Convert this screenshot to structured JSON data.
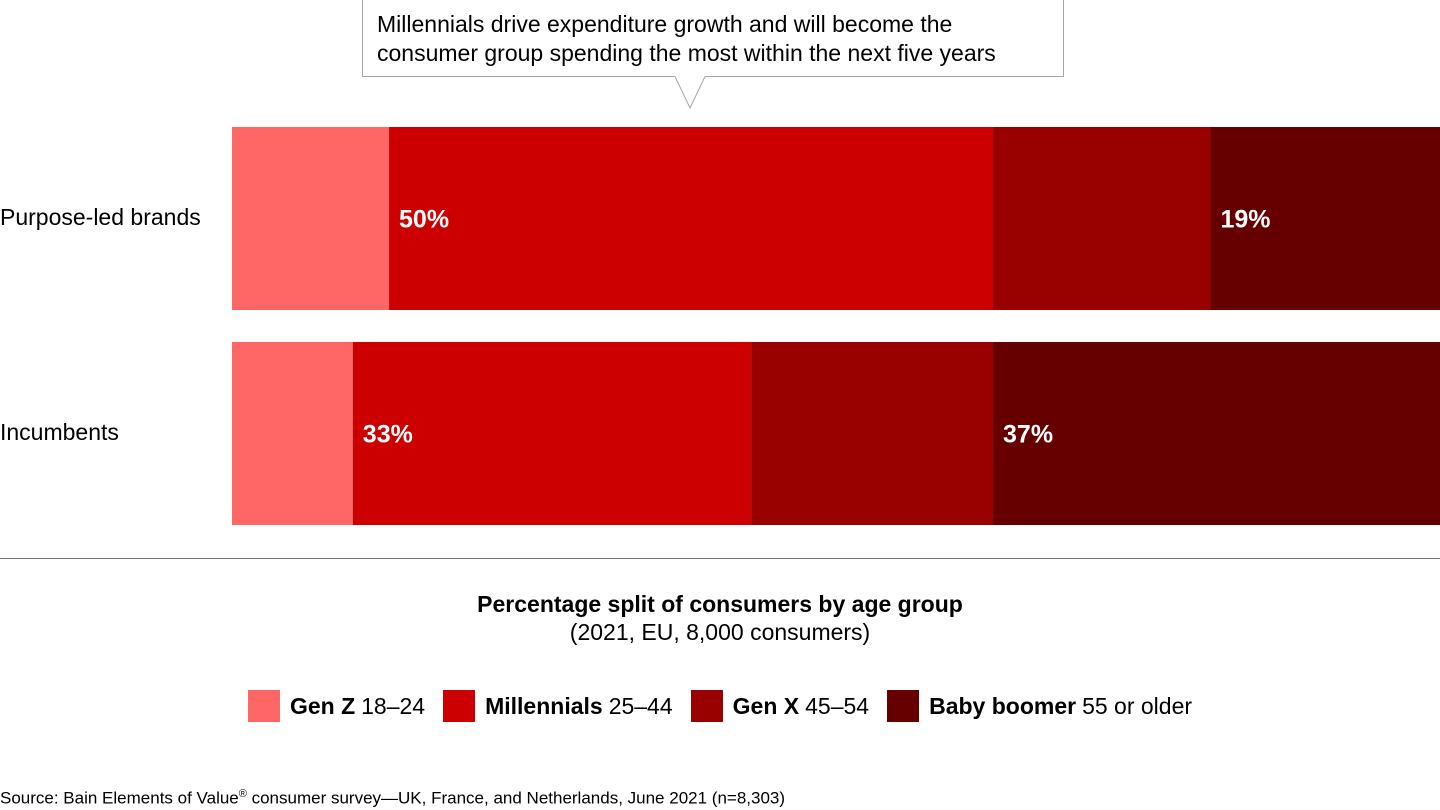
{
  "callout": {
    "line1": "Millennials drive expenditure growth and will become the",
    "line2": "consumer group spending the most within the next five years"
  },
  "chart_data": {
    "type": "bar",
    "orientation": "horizontal",
    "stacked": true,
    "normalized": true,
    "categories": [
      "Purpose-led brands",
      "Incumbents"
    ],
    "series": [
      {
        "name": "Gen Z",
        "range": "18–24",
        "color": "#ff6666",
        "values": [
          13,
          10
        ]
      },
      {
        "name": "Millennials",
        "range": "25–44",
        "color": "#cc0000",
        "values": [
          50,
          33
        ]
      },
      {
        "name": "Gen X",
        "range": "45–54",
        "color": "#990000",
        "values": [
          18,
          20
        ]
      },
      {
        "name": "Baby boomer",
        "range": "55 or older",
        "color": "#660000",
        "values": [
          19,
          37
        ]
      }
    ],
    "data_labels": [
      {
        "row": 0,
        "series": 1,
        "text": "50%"
      },
      {
        "row": 0,
        "series": 3,
        "text": "19%"
      },
      {
        "row": 1,
        "series": 1,
        "text": "33%"
      },
      {
        "row": 1,
        "series": 3,
        "text": "37%"
      }
    ],
    "title": "Percentage split of consumers by age group",
    "subtitle": "(2021, EU, 8,000 consumers)",
    "xlim": [
      0,
      100
    ],
    "grid": false,
    "legend_position": "bottom"
  },
  "source": {
    "prefix": "Source: Bain Elements of Value",
    "mark": "®",
    "suffix": " consumer survey—UK, France, and Netherlands, June 2021 (n=8,303)"
  }
}
